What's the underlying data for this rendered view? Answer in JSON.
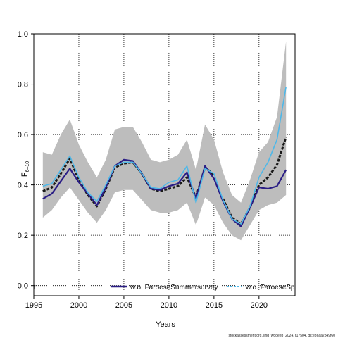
{
  "chart_data": {
    "type": "line",
    "xlabel": "Years",
    "ylabel_main": "F",
    "ylabel_sub": "6–10",
    "xlim": [
      1995,
      2024
    ],
    "ylim": [
      -0.04,
      1.0
    ],
    "xticks": [
      1995,
      2000,
      2005,
      2010,
      2015,
      2020
    ],
    "yticks": [
      0.0,
      0.2,
      0.4,
      0.6,
      0.8,
      1.0
    ],
    "ytick_labels": [
      "0.0",
      "0.2",
      "0.4",
      "0.6",
      "0.8",
      "1.0"
    ],
    "grid": true,
    "x": [
      1996,
      1997,
      1998,
      1999,
      2000,
      2001,
      2002,
      2003,
      2004,
      2005,
      2006,
      2007,
      2008,
      2009,
      2010,
      2011,
      2012,
      2013,
      2014,
      2015,
      2016,
      2017,
      2018,
      2019,
      2020,
      2021,
      2022,
      2023
    ],
    "band": {
      "upper": [
        0.53,
        0.52,
        0.6,
        0.66,
        0.56,
        0.49,
        0.43,
        0.5,
        0.62,
        0.63,
        0.63,
        0.57,
        0.5,
        0.49,
        0.5,
        0.52,
        0.58,
        0.46,
        0.64,
        0.58,
        0.45,
        0.36,
        0.33,
        0.42,
        0.53,
        0.57,
        0.67,
        0.97
      ],
      "lower": [
        0.27,
        0.3,
        0.35,
        0.39,
        0.34,
        0.29,
        0.25,
        0.3,
        0.37,
        0.38,
        0.38,
        0.34,
        0.3,
        0.29,
        0.29,
        0.3,
        0.33,
        0.24,
        0.35,
        0.32,
        0.25,
        0.2,
        0.18,
        0.24,
        0.3,
        0.32,
        0.33,
        0.36
      ],
      "color": "#bdbdbd"
    },
    "series": [
      {
        "key": "baseline",
        "color": "#1a1a1a",
        "style": "dashed",
        "values": [
          0.375,
          0.39,
          0.445,
          0.505,
          0.42,
          0.36,
          0.315,
          0.385,
          0.47,
          0.485,
          0.49,
          0.445,
          0.385,
          0.375,
          0.385,
          0.395,
          0.43,
          0.35,
          0.47,
          0.44,
          null,
          null,
          null,
          null,
          null,
          null,
          null,
          null
        ]
      },
      {
        "key": "baseline-b",
        "color": "#1a1a1a",
        "style": "dashed",
        "values": [
          null,
          null,
          null,
          null,
          null,
          null,
          null,
          null,
          null,
          null,
          null,
          null,
          null,
          null,
          null,
          null,
          null,
          null,
          null,
          null,
          0.345,
          0.27,
          0.245,
          0.31,
          0.4,
          0.43,
          0.48,
          0.59
        ]
      },
      {
        "key": "wo-summer",
        "name": "w.o. FaroeseSummersurvey",
        "color": "#2a1d85",
        "style": "solid",
        "values": [
          0.345,
          0.365,
          0.415,
          0.465,
          0.41,
          0.365,
          0.32,
          0.39,
          0.475,
          0.5,
          0.495,
          0.445,
          0.385,
          0.38,
          0.395,
          0.405,
          0.45,
          0.345,
          0.475,
          0.425,
          0.335,
          0.265,
          0.235,
          0.31,
          0.39,
          0.385,
          0.395,
          0.46
        ]
      },
      {
        "key": "wo-spring",
        "name": "w.o. FaroeseSp",
        "color": "#4fb8e8",
        "style": "solid",
        "values": [
          0.395,
          0.405,
          0.46,
          0.515,
          0.43,
          0.37,
          0.335,
          0.4,
          0.475,
          0.49,
          0.49,
          0.445,
          0.39,
          0.385,
          0.41,
          0.42,
          0.475,
          0.33,
          0.465,
          0.445,
          0.34,
          0.265,
          0.245,
          0.315,
          0.43,
          0.49,
          0.58,
          0.79
        ]
      }
    ],
    "legend_start_text": "t",
    "legend_placement": "bottom"
  },
  "footer": "stockassessment.org, ling_wgdeep_2024, r17504, git:e36aa2b49f60"
}
